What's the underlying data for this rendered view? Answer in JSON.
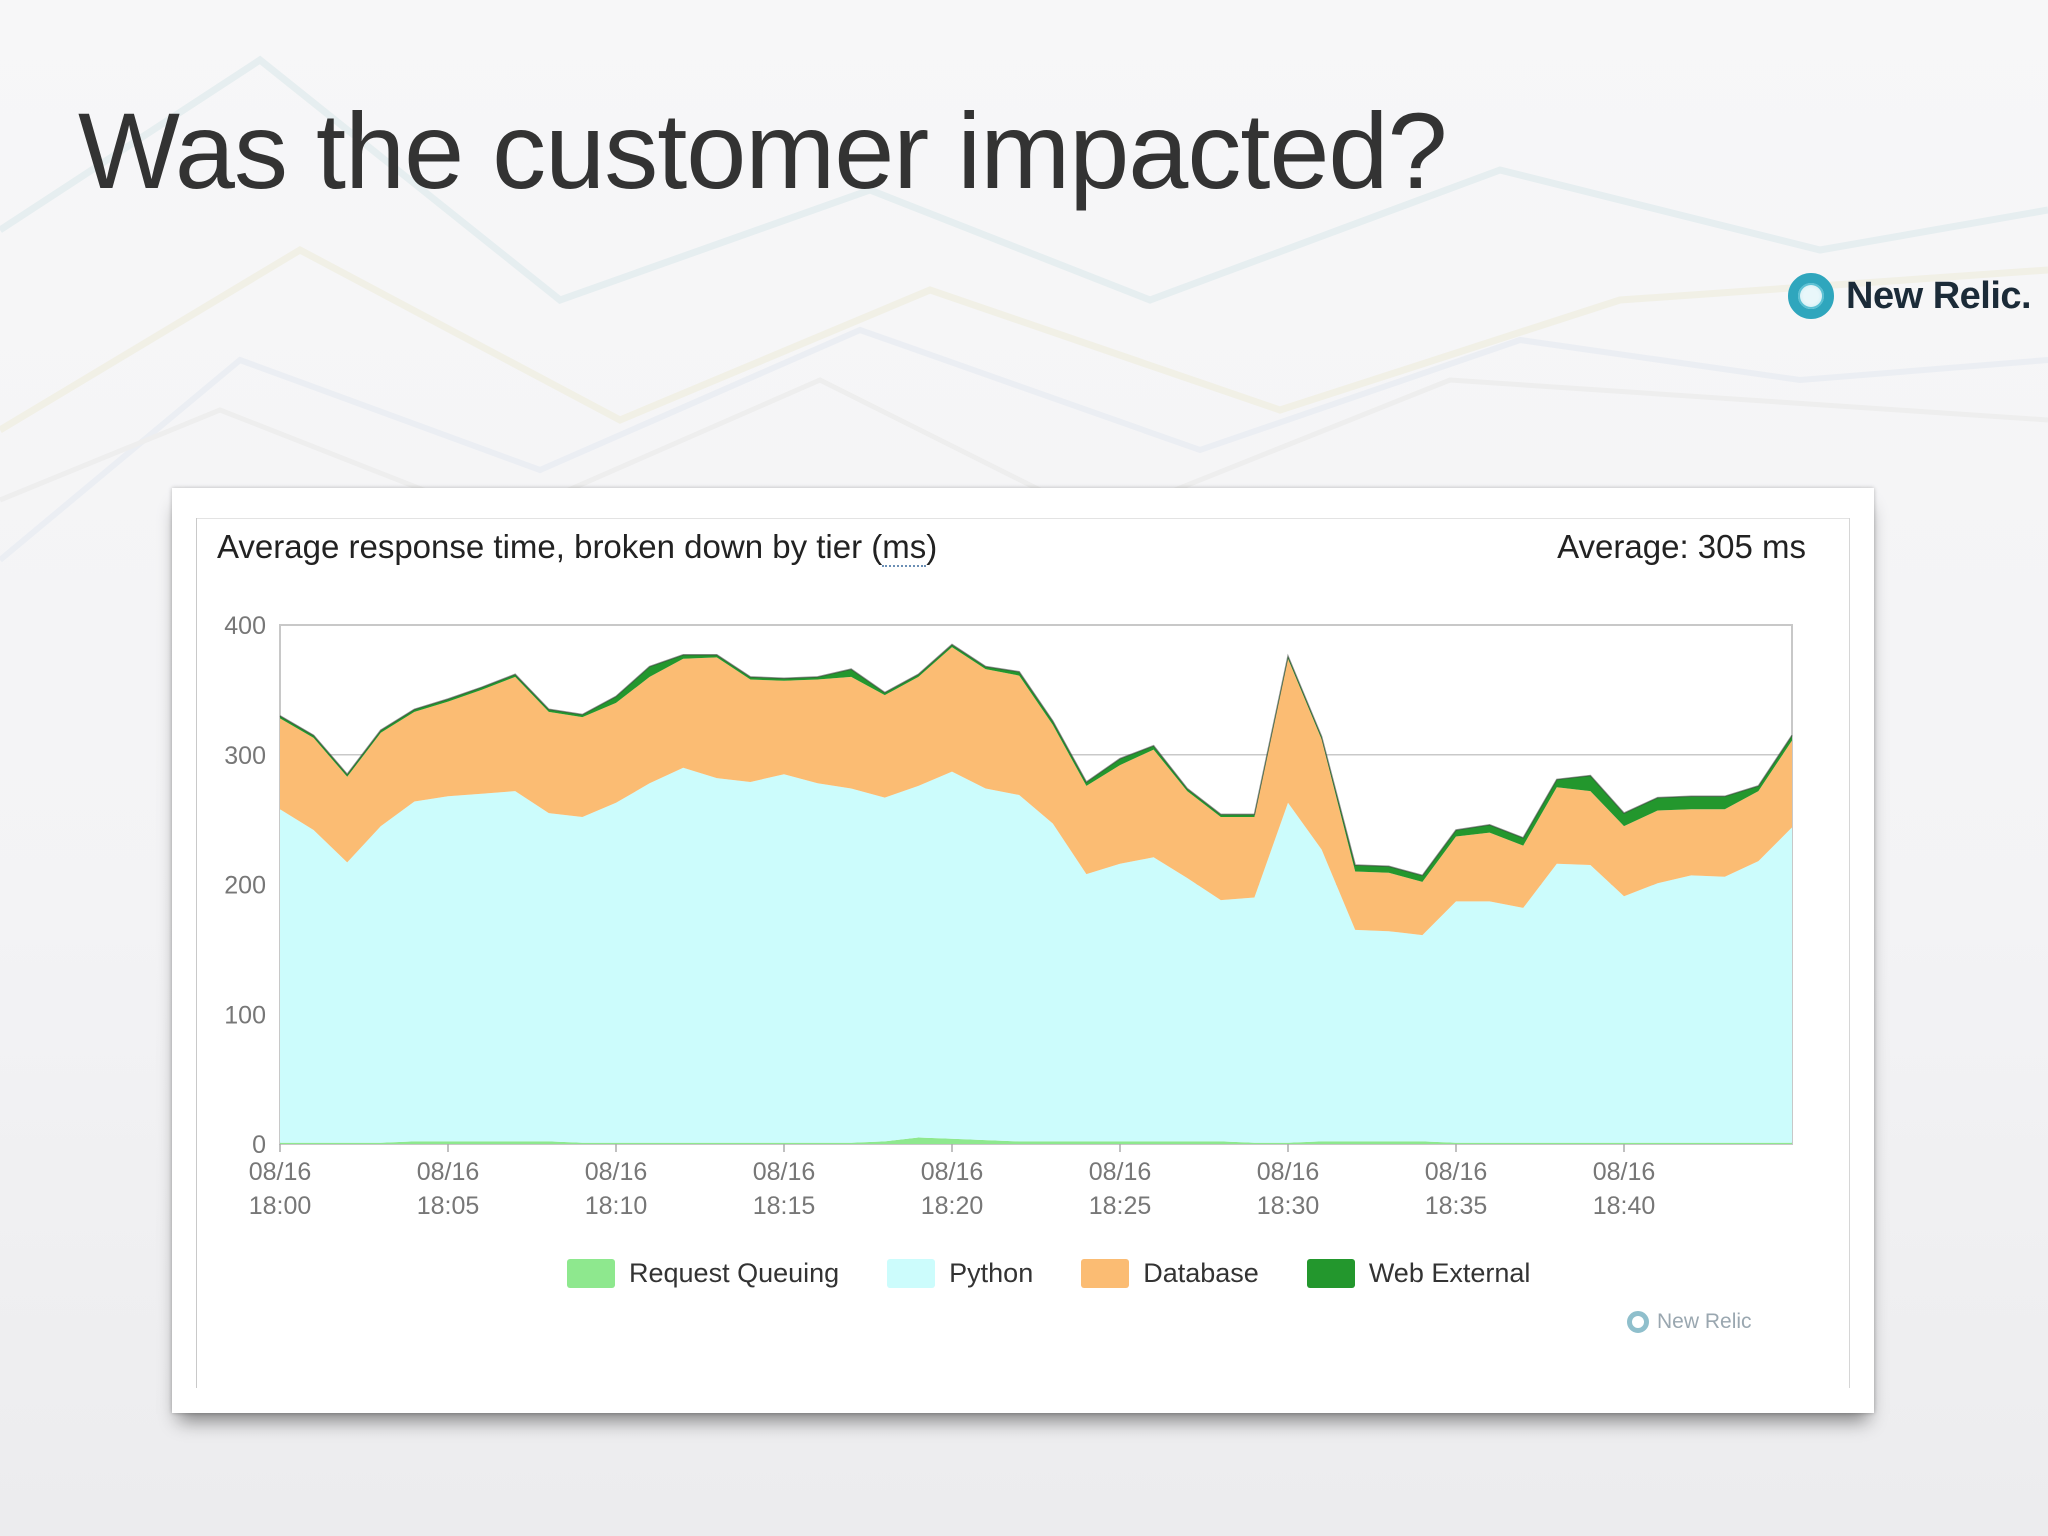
{
  "slide": {
    "title": "Was the customer impacted?",
    "brand": "New Relic."
  },
  "chart_panel": {
    "title_prefix": "Average response time, broken down by tier (",
    "title_abbr": "ms",
    "title_suffix": ")",
    "average_label": "Average: 305 ms",
    "watermark": "New Relic"
  },
  "chart_data": {
    "type": "area",
    "stacked": true,
    "title": "Average response time, broken down by tier (ms)",
    "xlabel": "",
    "ylabel": "",
    "ylim": [
      0,
      400
    ],
    "yticks": [
      0,
      100,
      200,
      300,
      400
    ],
    "grid": true,
    "legend_position": "bottom",
    "x_start_minute": 0,
    "x_step_minutes": 1,
    "xlim": [
      0,
      45
    ],
    "xticks": [
      {
        "minute": 0,
        "date": "08/16",
        "time": "18:00"
      },
      {
        "minute": 5,
        "date": "08/16",
        "time": "18:05"
      },
      {
        "minute": 10,
        "date": "08/16",
        "time": "18:10"
      },
      {
        "minute": 15,
        "date": "08/16",
        "time": "18:15"
      },
      {
        "minute": 20,
        "date": "08/16",
        "time": "18:20"
      },
      {
        "minute": 25,
        "date": "08/16",
        "time": "18:25"
      },
      {
        "minute": 30,
        "date": "08/16",
        "time": "18:30"
      },
      {
        "minute": 35,
        "date": "08/16",
        "time": "18:35"
      },
      {
        "minute": 40,
        "date": "08/16",
        "time": "18:40"
      }
    ],
    "series": [
      {
        "name": "Request Queuing",
        "color": "#8ee88e",
        "values": [
          1,
          1,
          1,
          1,
          2,
          2,
          2,
          2,
          2,
          1,
          1,
          1,
          1,
          1,
          1,
          1,
          1,
          1,
          2,
          5,
          4,
          3,
          2,
          2,
          2,
          2,
          2,
          2,
          2,
          1,
          1,
          2,
          2,
          2,
          2,
          1,
          1,
          1,
          1,
          1,
          1,
          1,
          1,
          1,
          1,
          1
        ]
      },
      {
        "name": "Python",
        "color": "#ccfcfc",
        "values": [
          257,
          241,
          216,
          244,
          262,
          266,
          268,
          270,
          253,
          251,
          262,
          277,
          289,
          281,
          278,
          284,
          277,
          273,
          265,
          271,
          283,
          271,
          267,
          245,
          206,
          214,
          219,
          203,
          186,
          189,
          262,
          225,
          163,
          162,
          159,
          186,
          186,
          181,
          215,
          214,
          190,
          200,
          206,
          205,
          217,
          243
        ]
      },
      {
        "name": "Database",
        "color": "#fbbc73",
        "values": [
          70,
          71,
          66,
          72,
          69,
          73,
          80,
          88,
          78,
          77,
          77,
          82,
          84,
          93,
          79,
          72,
          80,
          86,
          79,
          84,
          96,
          92,
          92,
          76,
          68,
          76,
          83,
          67,
          64,
          62,
          111,
          85,
          45,
          45,
          41,
          50,
          53,
          48,
          59,
          57,
          54,
          56,
          51,
          52,
          54,
          67
        ]
      },
      {
        "name": "Web External",
        "color": "#23972d",
        "values": [
          2,
          2,
          2,
          2,
          2,
          2,
          2,
          2,
          2,
          2,
          5,
          8,
          3,
          2,
          2,
          2,
          2,
          6,
          2,
          2,
          2,
          2,
          3,
          3,
          3,
          5,
          3,
          2,
          2,
          2,
          2,
          2,
          5,
          5,
          5,
          5,
          6,
          6,
          6,
          12,
          10,
          10,
          10,
          10,
          4,
          4
        ]
      }
    ]
  }
}
